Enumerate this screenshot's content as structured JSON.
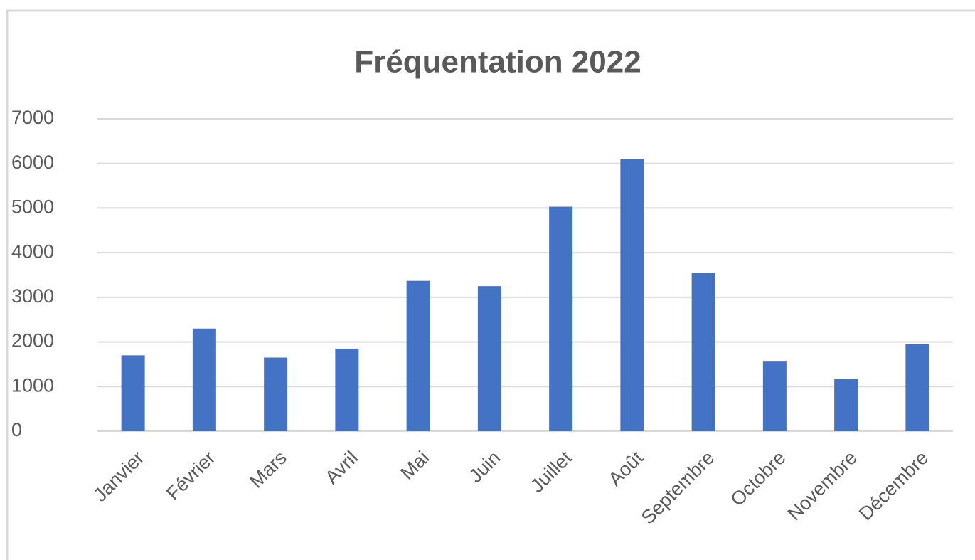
{
  "chart_data": {
    "type": "bar",
    "title": "Fréquentation 2022",
    "categories": [
      "Janvier",
      "Février",
      "Mars",
      "Avril",
      "Mai",
      "Juin",
      "Juillet",
      "Août",
      "Septembre",
      "Octobre",
      "Novembre",
      "Décembre"
    ],
    "values": [
      1700,
      2300,
      1650,
      1850,
      3370,
      3250,
      5030,
      6100,
      3540,
      1560,
      1170,
      1950
    ],
    "color": "#4472c4",
    "ylim": [
      0,
      7000
    ],
    "yticks": [
      0,
      1000,
      2000,
      3000,
      4000,
      5000,
      6000,
      7000
    ],
    "grid": true
  }
}
